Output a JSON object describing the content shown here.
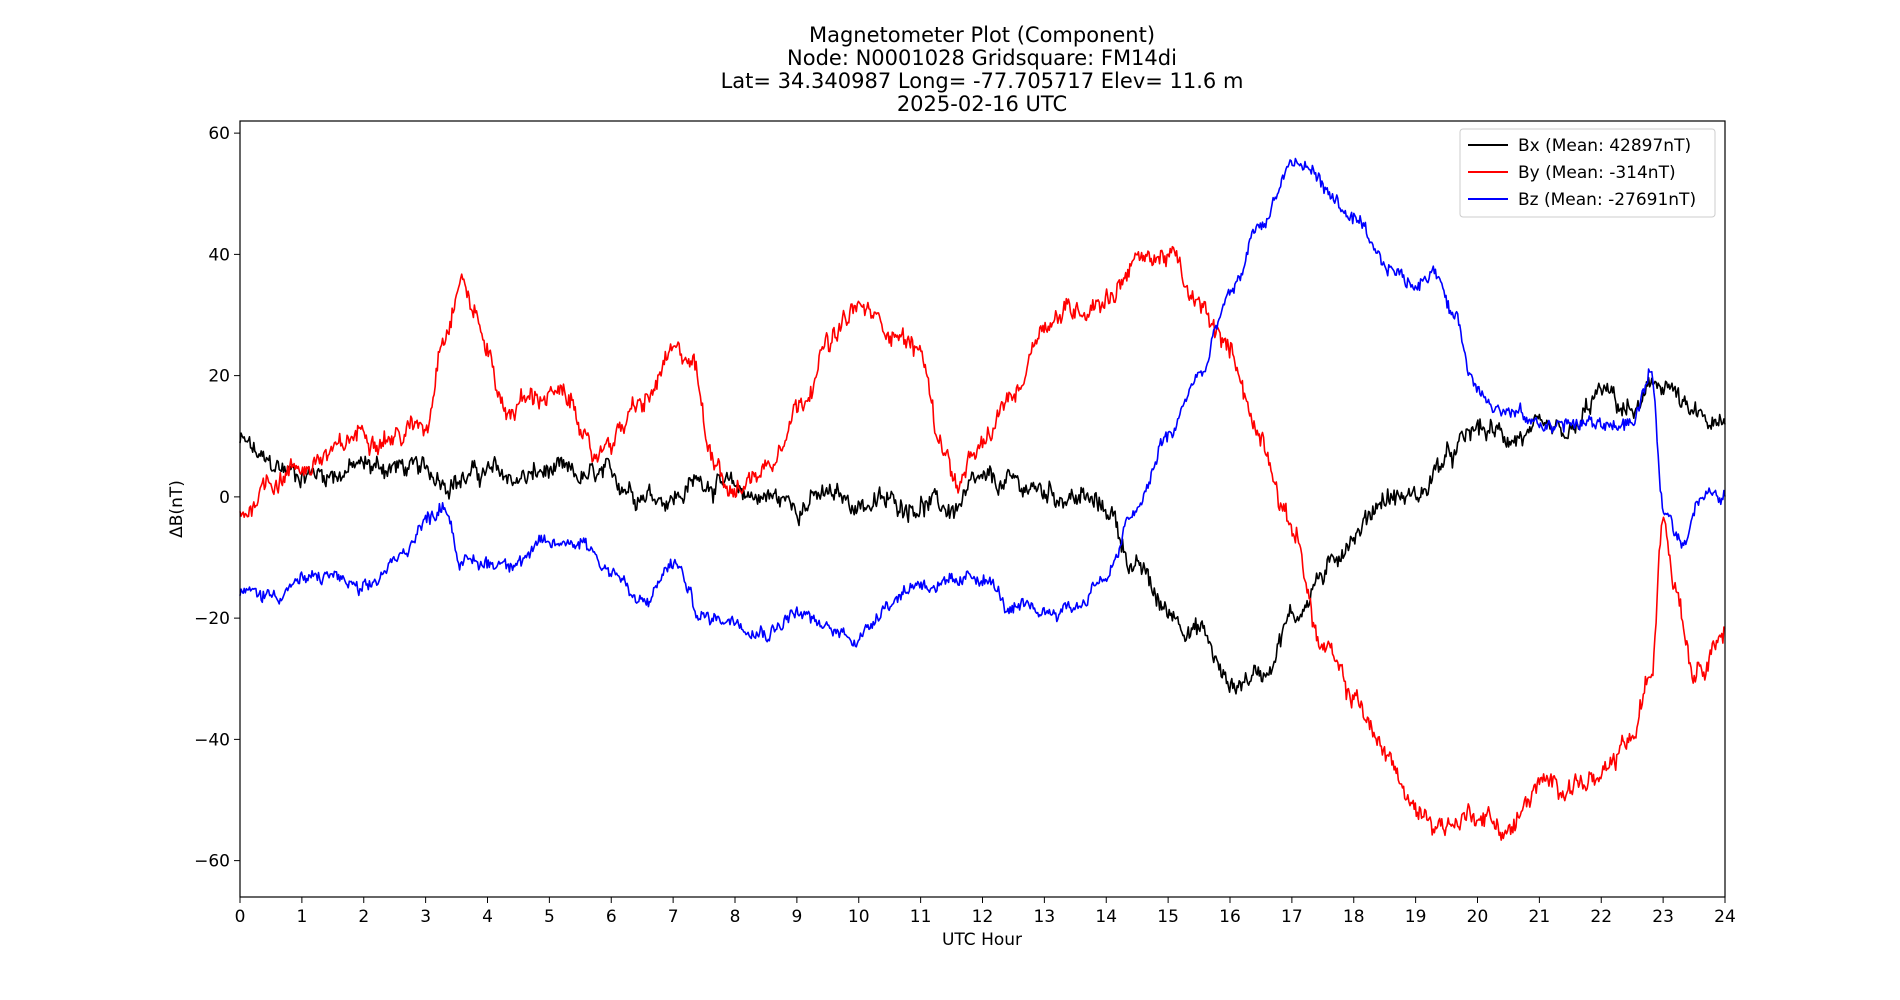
{
  "chart_data": {
    "type": "line",
    "title": [
      "Magnetometer Plot (Component)",
      "Node:  N0001028     Gridsquare:  FM14di",
      "Lat= 34.340987    Long= -77.705717    Elev= 11.6 m",
      "2025-02-16  UTC"
    ],
    "xlabel": "UTC Hour",
    "ylabel": "ΔB(nT)",
    "xlim": [
      0,
      24
    ],
    "ylim": [
      -66,
      62
    ],
    "xticks": [
      0,
      1,
      2,
      3,
      4,
      5,
      6,
      7,
      8,
      9,
      10,
      11,
      12,
      13,
      14,
      15,
      16,
      17,
      18,
      19,
      20,
      21,
      22,
      23,
      24
    ],
    "xtick_labels": [
      "0",
      "1",
      "2",
      "3",
      "4",
      "5",
      "6",
      "7",
      "8",
      "9",
      "10",
      "11",
      "12",
      "13",
      "14",
      "15",
      "16",
      "17",
      "18",
      "19",
      "20",
      "21",
      "22",
      "23",
      "24"
    ],
    "yticks": [
      60,
      40,
      20,
      0,
      -20,
      -40,
      -60
    ],
    "ytick_labels": [
      "60",
      "40",
      "20",
      "0",
      "−20",
      "−40",
      "−60"
    ],
    "grid": false,
    "legend_position": "top-right",
    "series": [
      {
        "name": "Bx (Mean: 42897nT)",
        "color": "#000000",
        "noise": 1.3,
        "x": [
          0,
          0.5,
          1,
          1.5,
          2,
          2.5,
          3,
          3.5,
          4,
          4.5,
          5,
          5.5,
          6,
          6.5,
          7,
          7.5,
          8,
          8.5,
          9,
          9.5,
          10,
          10.5,
          11,
          11.5,
          12,
          12.5,
          13,
          13.5,
          14,
          14.5,
          15,
          15.5,
          16,
          16.5,
          17,
          17.5,
          18,
          18.5,
          19,
          19.5,
          20,
          20.5,
          21,
          21.5,
          22,
          22.5,
          23,
          23.5,
          24
        ],
        "y": [
          9,
          5,
          4,
          4,
          5,
          5,
          4,
          3,
          4,
          3,
          4,
          3,
          3,
          1,
          0,
          3,
          1,
          0,
          -1,
          0,
          -1,
          -1,
          -1,
          -2,
          2,
          2,
          1,
          0,
          -2,
          -12,
          -19,
          -22,
          -31,
          -29,
          -20,
          -13,
          -6,
          0,
          0,
          6,
          11,
          10,
          10,
          10,
          17,
          14,
          19,
          13,
          11
        ]
      },
      {
        "name": "By (Mean: -314nT)",
        "color": "#ff0000",
        "noise": 1.3,
        "x": [
          0,
          0.5,
          1,
          1.5,
          2,
          2.5,
          3,
          3.3,
          3.6,
          3.8,
          4,
          4.3,
          4.6,
          5,
          5.4,
          5.7,
          6,
          6.5,
          7,
          7.3,
          7.6,
          8,
          8.5,
          9,
          9.5,
          10,
          10.5,
          11,
          11.3,
          11.6,
          12,
          12.5,
          13,
          13.5,
          14,
          14.5,
          15,
          15.5,
          16,
          16.5,
          17,
          17.5,
          18,
          18.5,
          19,
          19.5,
          20,
          20.5,
          21,
          21.5,
          22,
          22.5,
          22.8,
          23,
          23.2,
          23.5,
          24
        ],
        "y": [
          -3,
          3,
          5,
          7,
          11,
          10,
          12,
          28,
          36,
          30,
          24,
          14,
          16,
          17,
          15,
          6,
          10,
          15,
          23,
          23,
          8,
          1,
          5,
          15,
          25,
          31,
          28,
          24,
          10,
          2,
          8,
          17,
          29,
          31,
          33,
          39,
          40,
          31,
          24,
          10,
          -5,
          -25,
          -33,
          -42,
          -52,
          -54,
          -52,
          -55,
          -48,
          -47,
          -47,
          -40,
          -30,
          -2,
          -14,
          -28,
          -22
        ]
      },
      {
        "name": "Bz (Mean: -27691nT)",
        "color": "#0000ff",
        "noise": 0.9,
        "x": [
          0,
          0.5,
          1,
          1.5,
          2,
          2.5,
          3,
          3.3,
          3.6,
          4,
          4.5,
          5,
          5.5,
          6,
          6.5,
          7,
          7.5,
          8,
          8.5,
          9,
          9.5,
          10,
          10.5,
          11,
          11.5,
          12,
          12.5,
          13,
          13.5,
          14,
          14.5,
          15,
          15.5,
          16,
          16.5,
          17,
          17.3,
          17.7,
          18,
          18.5,
          19,
          19.3,
          19.6,
          20,
          20.5,
          21,
          21.5,
          22,
          22.5,
          22.8,
          23,
          23.3,
          23.6,
          24
        ],
        "y": [
          -16,
          -16,
          -14,
          -13,
          -16,
          -11,
          -4,
          -1,
          -11,
          -11,
          -10,
          -8,
          -7,
          -12,
          -18,
          -11,
          -20,
          -20,
          -22,
          -19,
          -22,
          -23,
          -17,
          -14,
          -15,
          -13,
          -19,
          -19,
          -18,
          -13,
          -2,
          10,
          20,
          33,
          45,
          55,
          54,
          49,
          45,
          38,
          35,
          38,
          30,
          18,
          14,
          12,
          12,
          12,
          12,
          20,
          -2,
          -7,
          0,
          0
        ]
      }
    ]
  }
}
